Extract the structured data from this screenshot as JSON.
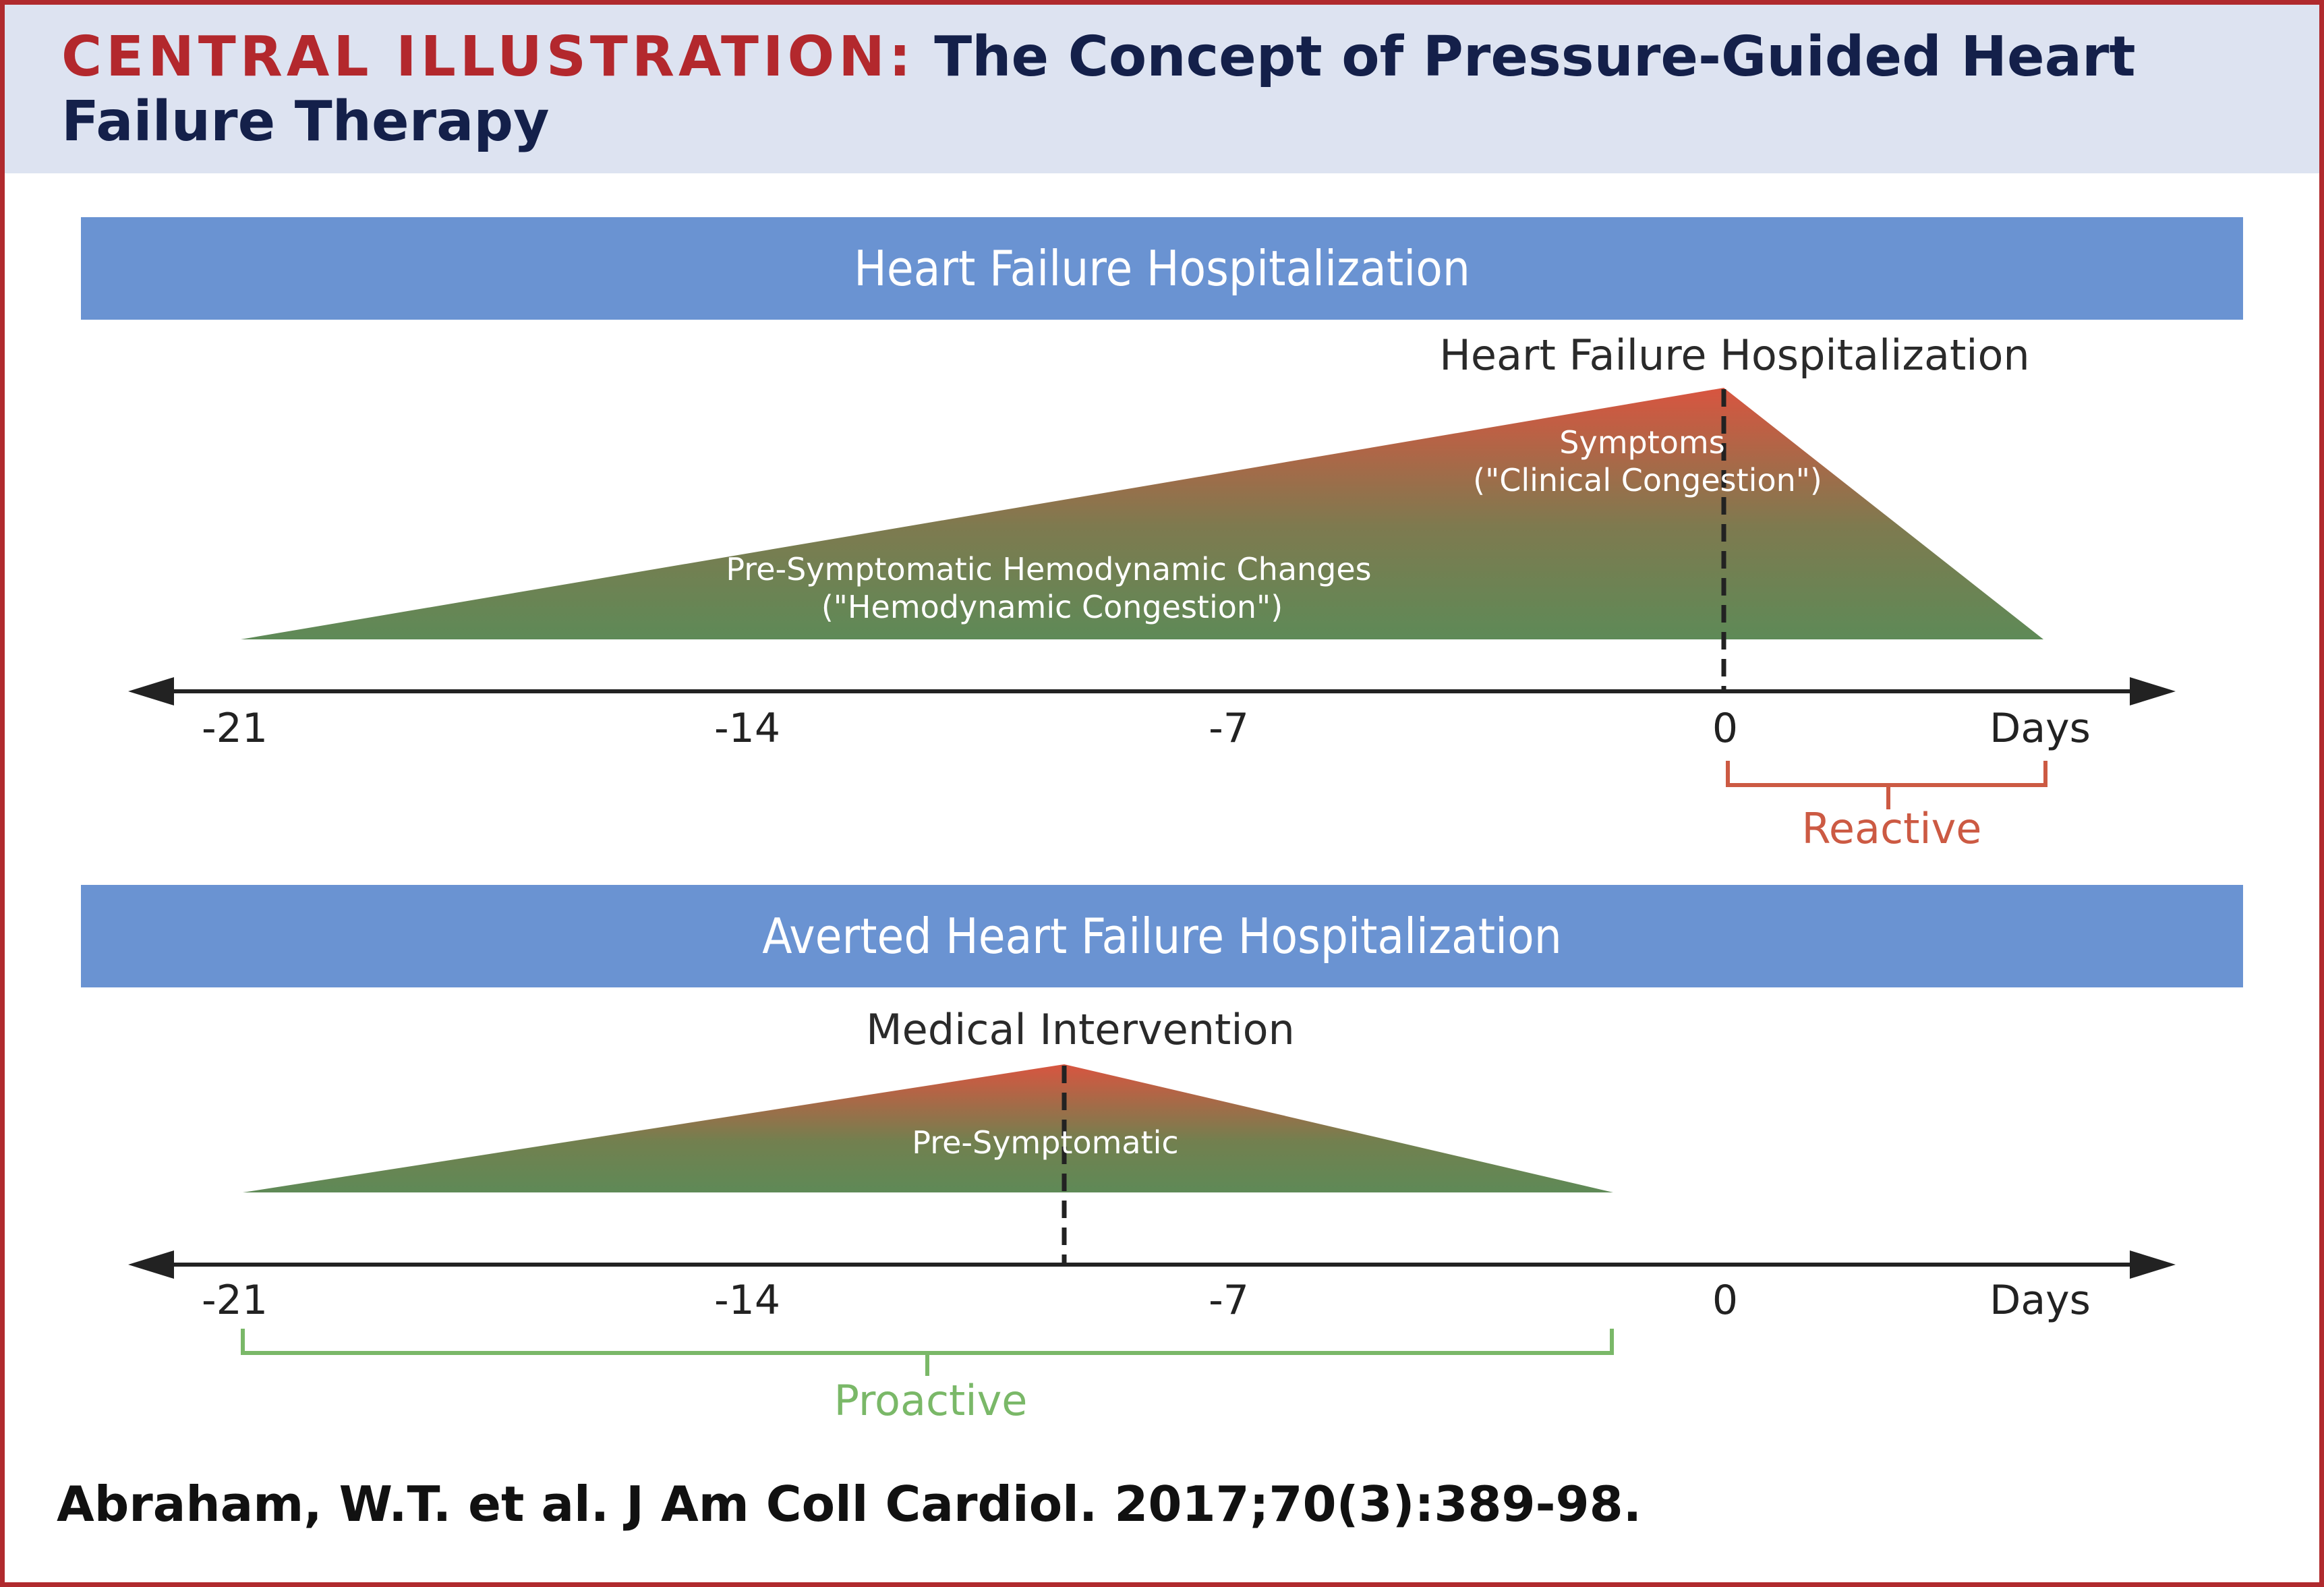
{
  "header": {
    "label": "CENTRAL ILLUSTRATION:",
    "title": "The Concept of Pressure-Guided Heart Failure Therapy"
  },
  "panels": [
    {
      "band_title": "Heart Failure Hospitalization",
      "event_label": "Heart Failure Hospitalization",
      "symptoms_line1": "Symptoms",
      "symptoms_line2": "(\"Clinical Congestion\")",
      "presymptomatic_line1": "Pre-Symptomatic Hemodynamic Changes",
      "presymptomatic_line2": "(\"Hemodynamic Congestion\")",
      "ticks": [
        "-21",
        "-14",
        "-7",
        "0",
        "Days"
      ],
      "bracket_label": "Reactive",
      "bracket_color": "#cc5a43"
    },
    {
      "band_title": "Averted Heart Failure Hospitalization",
      "event_label": "Medical Intervention",
      "presymptomatic_label": "Pre-Symptomatic",
      "ticks": [
        "-21",
        "-14",
        "-7",
        "0",
        "Days"
      ],
      "bracket_label": "Proactive",
      "bracket_color": "#7ab868"
    }
  ],
  "colors": {
    "gradient_top": "#d85540",
    "gradient_bottom": "#5e8a57",
    "band": "#6a93d2",
    "border": "#b02a2e"
  },
  "citation": "Abraham, W.T. et al. J Am Coll Cardiol. 2017;70(3):389-98."
}
